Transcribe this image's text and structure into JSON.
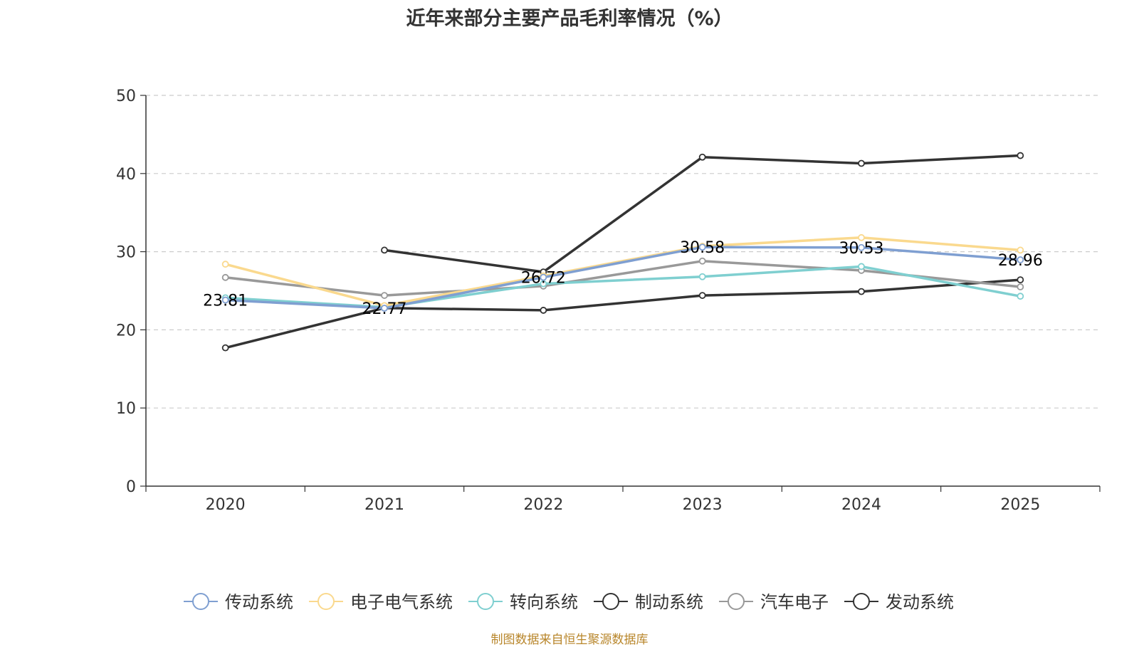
{
  "chart_data": {
    "type": "line",
    "title": "近年来部分主要产品毛利率情况（%）",
    "xlabel": "",
    "ylabel": "",
    "categories": [
      "2020",
      "2021",
      "2022",
      "2023",
      "2024",
      "2025"
    ],
    "ylim": [
      0,
      50
    ],
    "yticks": [
      "0",
      "10",
      "20",
      "30",
      "40",
      "50"
    ],
    "grid": true,
    "legend_position": "bottom",
    "series": [
      {
        "name": "传动系统",
        "color": "#7f9fd1",
        "values": [
          23.81,
          22.77,
          26.72,
          30.58,
          30.53,
          28.96
        ],
        "labels": [
          "23.81",
          "22.77",
          "26.72",
          "30.58",
          "30.53",
          "28.96"
        ]
      },
      {
        "name": "电子电气系统",
        "color": "#fad98e",
        "values": [
          28.4,
          23.1,
          26.9,
          30.7,
          31.8,
          30.2
        ]
      },
      {
        "name": "转向系统",
        "color": "#7fcfd0",
        "values": [
          24.1,
          22.9,
          25.9,
          26.8,
          28.1,
          24.3
        ]
      },
      {
        "name": "制动系统",
        "color": "#333333",
        "values": [
          null,
          30.2,
          27.4,
          42.1,
          41.3,
          42.3
        ]
      },
      {
        "name": "汽车电子",
        "color": "#999999",
        "values": [
          26.7,
          24.4,
          25.6,
          28.8,
          27.6,
          25.5
        ]
      },
      {
        "name": "发动系统",
        "color": "#333333",
        "values": [
          17.7,
          22.8,
          22.5,
          24.4,
          24.9,
          26.4
        ]
      }
    ]
  },
  "footer": {
    "source": "制图数据来自恒生聚源数据库"
  }
}
